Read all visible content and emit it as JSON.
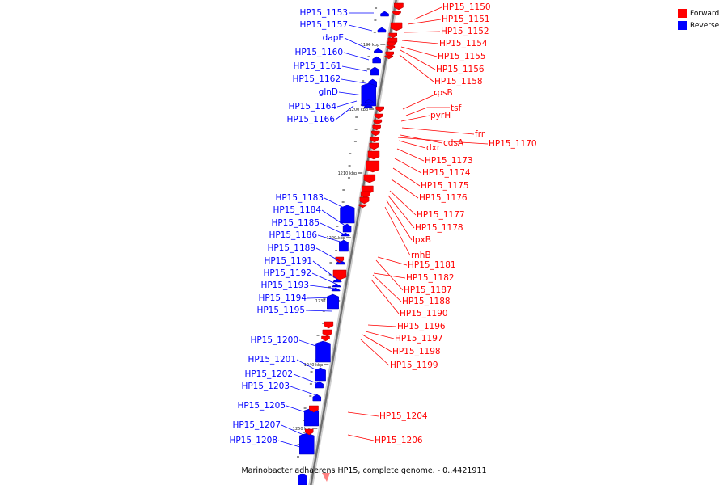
{
  "legend": {
    "forward": {
      "label": "Forward",
      "color": "#ff0000"
    },
    "reverse": {
      "label": "Reverse",
      "color": "#0000ff"
    }
  },
  "caption": "Marinobacter adhaerens HP15, complete genome. - 0..4421911",
  "scale_labels": [
    "1190 kbp",
    "1200 kbp",
    "1210 kbp",
    "1220 kbp",
    "1230 kbp",
    "1240 kbp",
    "1250 kbp"
  ],
  "reverse_genes": [
    "HP15_1153",
    "HP15_1157",
    "dapE",
    "HP15_1160",
    "HP15_1161",
    "HP15_1162",
    "glnD",
    "HP15_1164",
    "HP15_1166",
    "HP15_1183",
    "HP15_1184",
    "HP15_1185",
    "HP15_1186",
    "HP15_1189",
    "HP15_1191",
    "HP15_1192",
    "HP15_1193",
    "HP15_1194",
    "HP15_1195",
    "HP15_1200",
    "HP15_1201",
    "HP15_1202",
    "HP15_1203",
    "HP15_1205",
    "HP15_1207",
    "HP15_1208"
  ],
  "forward_genes": [
    "HP15_1150",
    "HP15_1151",
    "HP15_1152",
    "HP15_1154",
    "HP15_1155",
    "HP15_1156",
    "HP15_1158",
    "rpsB",
    "tsf",
    "pyrH",
    "frr",
    "cdsA",
    "HP15_1170",
    "dxr",
    "HP15_1173",
    "HP15_1174",
    "HP15_1175",
    "HP15_1176",
    "HP15_1177",
    "HP15_1178",
    "lpxB",
    "rnhB",
    "HP15_1181",
    "HP15_1182",
    "HP15_1187",
    "HP15_1188",
    "HP15_1190",
    "HP15_1196",
    "HP15_1197",
    "HP15_1198",
    "HP15_1199",
    "HP15_1204",
    "HP15_1206"
  ]
}
